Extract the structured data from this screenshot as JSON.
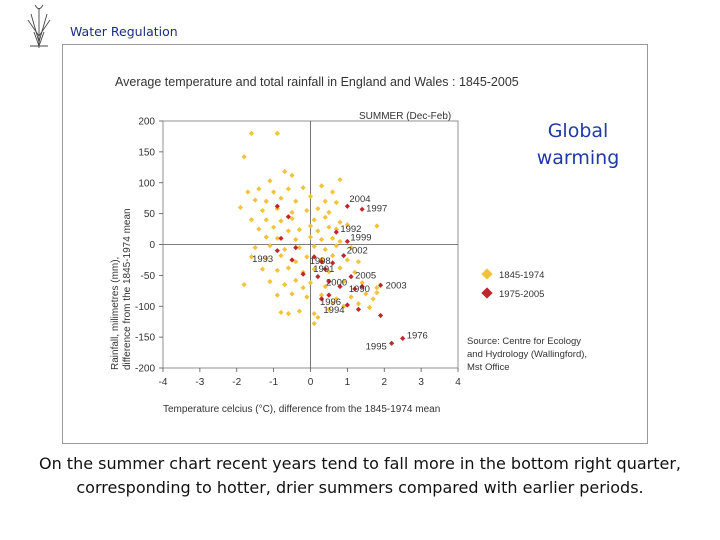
{
  "header": {
    "title": "Water Regulation",
    "logo_icon": "reed-plant-icon"
  },
  "callout": {
    "lines": [
      "Global",
      "warming"
    ],
    "color": "#1f3aa8"
  },
  "caption": {
    "lines": [
      "On the summer chart recent years tend to fall more in the bottom right quarter,",
      "corresponding to hotter, drier summers compared with earlier periods."
    ]
  },
  "chart_data": {
    "type": "scatter",
    "title": "Average temperature and total rainfall in England and Wales : 1845-2005",
    "subtitle": "SUMMER (Dec-Feb)",
    "xlabel": "Temperature celcius (°C), difference from the 1845-1974 mean",
    "ylabel": [
      "Rainfall, milimetres (mm),",
      "difference from the 1845-1974 mean"
    ],
    "xlim": [
      -4,
      4
    ],
    "ylim": [
      -200,
      200
    ],
    "xticks": [
      -4,
      -3,
      -2,
      -1,
      0,
      1,
      2,
      3,
      4
    ],
    "yticks": [
      200,
      150,
      100,
      50,
      0,
      -50,
      -100,
      -150,
      -200
    ],
    "grid": false,
    "legend_position": "right",
    "source": [
      "Source: Centre for Ecology",
      "and Hydrology (Wallingford),",
      "Mst Office"
    ],
    "series": [
      {
        "name": "1845-1974",
        "color": "#f2c23a",
        "marker": "diamond",
        "points": [
          [
            -1.6,
            180
          ],
          [
            -0.9,
            180
          ],
          [
            -1.8,
            142
          ],
          [
            -0.7,
            118
          ],
          [
            -1.1,
            103
          ],
          [
            -0.5,
            112
          ],
          [
            0.8,
            105
          ],
          [
            -1.7,
            85
          ],
          [
            -1.4,
            90
          ],
          [
            -1.0,
            85
          ],
          [
            -0.6,
            90
          ],
          [
            -0.2,
            92
          ],
          [
            0.3,
            95
          ],
          [
            0.6,
            85
          ],
          [
            -1.5,
            72
          ],
          [
            -1.2,
            70
          ],
          [
            -0.8,
            75
          ],
          [
            -0.4,
            70
          ],
          [
            0.0,
            78
          ],
          [
            0.4,
            70
          ],
          [
            0.7,
            68
          ],
          [
            -1.9,
            60
          ],
          [
            -1.3,
            55
          ],
          [
            -0.9,
            58
          ],
          [
            -0.5,
            52
          ],
          [
            -0.1,
            55
          ],
          [
            0.2,
            58
          ],
          [
            0.5,
            52
          ],
          [
            -1.6,
            40
          ],
          [
            -1.2,
            40
          ],
          [
            -0.8,
            38
          ],
          [
            -0.5,
            42
          ],
          [
            0.1,
            40
          ],
          [
            0.4,
            44
          ],
          [
            0.8,
            36
          ],
          [
            1.0,
            32
          ],
          [
            1.8,
            30
          ],
          [
            -1.4,
            25
          ],
          [
            -1.0,
            28
          ],
          [
            -0.6,
            22
          ],
          [
            -0.3,
            24
          ],
          [
            0.0,
            30
          ],
          [
            0.2,
            22
          ],
          [
            0.5,
            28
          ],
          [
            0.7,
            25
          ],
          [
            -1.2,
            12
          ],
          [
            -0.9,
            10
          ],
          [
            -0.4,
            8
          ],
          [
            0.0,
            12
          ],
          [
            0.3,
            8
          ],
          [
            0.6,
            10
          ],
          [
            0.8,
            5
          ],
          [
            -1.5,
            -5
          ],
          [
            -1.1,
            -2
          ],
          [
            -0.7,
            -8
          ],
          [
            -0.3,
            -5
          ],
          [
            0.1,
            -3
          ],
          [
            0.4,
            -8
          ],
          [
            0.7,
            -2
          ],
          [
            1.1,
            -5
          ],
          [
            -1.6,
            -20
          ],
          [
            -1.2,
            -22
          ],
          [
            -0.8,
            -18
          ],
          [
            -0.5,
            -25
          ],
          [
            -0.1,
            -20
          ],
          [
            0.3,
            -24
          ],
          [
            0.6,
            -18
          ],
          [
            1.0,
            -25
          ],
          [
            1.3,
            -28
          ],
          [
            -1.3,
            -40
          ],
          [
            -0.9,
            -42
          ],
          [
            -0.6,
            -38
          ],
          [
            -0.2,
            -45
          ],
          [
            0.1,
            -40
          ],
          [
            0.5,
            -44
          ],
          [
            0.8,
            -38
          ],
          [
            1.2,
            -45
          ],
          [
            -1.8,
            -65
          ],
          [
            -1.1,
            -60
          ],
          [
            -0.7,
            -65
          ],
          [
            -0.4,
            -58
          ],
          [
            0.0,
            -62
          ],
          [
            0.4,
            -68
          ],
          [
            0.9,
            -60
          ],
          [
            1.4,
            -62
          ],
          [
            1.8,
            -70
          ],
          [
            -0.9,
            -82
          ],
          [
            -0.5,
            -80
          ],
          [
            -0.1,
            -85
          ],
          [
            0.3,
            -82
          ],
          [
            0.7,
            -88
          ],
          [
            1.1,
            -85
          ],
          [
            1.5,
            -80
          ],
          [
            1.8,
            -78
          ],
          [
            -0.8,
            -110
          ],
          [
            -0.3,
            -108
          ],
          [
            0.1,
            -112
          ],
          [
            0.5,
            -105
          ],
          [
            0.9,
            -100
          ],
          [
            1.3,
            -96
          ],
          [
            1.6,
            -102
          ],
          [
            -0.6,
            -112
          ],
          [
            0.2,
            -118
          ],
          [
            0.1,
            -128
          ],
          [
            0.6,
            -95
          ],
          [
            1.7,
            -88
          ],
          [
            -0.4,
            -28
          ],
          [
            -0.2,
            -70
          ]
        ]
      },
      {
        "name": "1975-2005",
        "color": "#c0262c",
        "marker": "diamond",
        "points": [
          [
            1.4,
            57
          ],
          [
            1.0,
            62
          ],
          [
            0.7,
            20
          ],
          [
            1.0,
            5
          ],
          [
            -0.9,
            62
          ],
          [
            -0.6,
            45
          ],
          [
            -0.8,
            10
          ],
          [
            -0.9,
            -10
          ],
          [
            -0.4,
            -5
          ],
          [
            -0.5,
            -25
          ],
          [
            0.1,
            -20
          ],
          [
            0.3,
            -28
          ],
          [
            0.6,
            -30
          ],
          [
            0.9,
            -18
          ],
          [
            -0.2,
            -48
          ],
          [
            0.2,
            -52
          ],
          [
            0.5,
            -60
          ],
          [
            0.8,
            -68
          ],
          [
            1.2,
            -72
          ],
          [
            1.4,
            -68
          ],
          [
            1.9,
            -66
          ],
          [
            0.3,
            -88
          ],
          [
            0.5,
            -82
          ],
          [
            1.0,
            -98
          ],
          [
            1.3,
            -105
          ],
          [
            1.9,
            -115
          ],
          [
            2.2,
            -160
          ],
          [
            2.5,
            -152
          ],
          [
            0.4,
            -40
          ],
          [
            1.1,
            -52
          ]
        ]
      }
    ],
    "annotations": [
      {
        "label": "2004",
        "x": 1.0,
        "y": 62
      },
      {
        "label": "1997",
        "x": 1.4,
        "y": 57
      },
      {
        "label": "1992",
        "x": 0.7,
        "y": 20
      },
      {
        "label": "1999",
        "x": 1.0,
        "y": 5
      },
      {
        "label": "2002",
        "x": 0.9,
        "y": -18
      },
      {
        "label": "1998",
        "x": 0.3,
        "y": -28
      },
      {
        "label": "1993",
        "x": -0.5,
        "y": -25
      },
      {
        "label": "2005",
        "x": 1.1,
        "y": -52
      },
      {
        "label": "1991",
        "x": 0.4,
        "y": -40
      },
      {
        "label": "2000",
        "x": 0.8,
        "y": -68
      },
      {
        "label": "1990",
        "x": 1.2,
        "y": -72
      },
      {
        "label": "2003",
        "x": 1.9,
        "y": -66
      },
      {
        "label": "1996",
        "x": 0.5,
        "y": -82
      },
      {
        "label": "1994",
        "x": 1.0,
        "y": -98
      },
      {
        "label": "1976",
        "x": 2.5,
        "y": -152
      },
      {
        "label": "1995",
        "x": 2.2,
        "y": -160
      }
    ]
  }
}
